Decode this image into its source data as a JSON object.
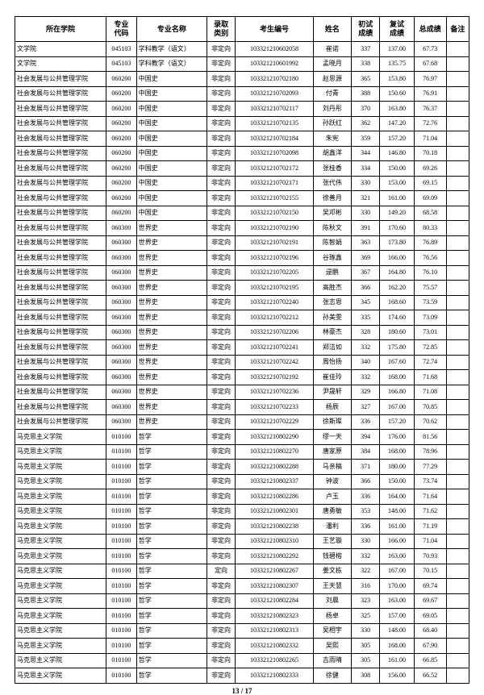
{
  "headers": [
    "所在学院",
    "专业\n代码",
    "专业名称",
    "录取\n类别",
    "考生编号",
    "姓名",
    "初试\n成绩",
    "复试\n成绩",
    "总成绩",
    "备注"
  ],
  "rows": [
    [
      "文学院",
      "045103",
      "学科教学（语文）",
      "非定向",
      "103321210602058",
      "崔诺",
      "337",
      "137.00",
      "67.73",
      ""
    ],
    [
      "文学院",
      "045103",
      "学科教学（语文）",
      "非定向",
      "103321210601992",
      "孟晓月",
      "338",
      "135.75",
      "67.68",
      ""
    ],
    [
      "社会发展与公共管理学院",
      "060200",
      "中国史",
      "非定向",
      "103321210702180",
      "赵思源",
      "365",
      "153.80",
      "76.97",
      ""
    ],
    [
      "社会发展与公共管理学院",
      "060200",
      "中国史",
      "非定向",
      "103321210702093",
      "付青",
      "388",
      "150.60",
      "76.91",
      ""
    ],
    [
      "社会发展与公共管理学院",
      "060200",
      "中国史",
      "非定向",
      "103321210702117",
      "刘丹彤",
      "370",
      "163.80",
      "76.37",
      ""
    ],
    [
      "社会发展与公共管理学院",
      "060200",
      "中国史",
      "非定向",
      "103321210702135",
      "孙跃红",
      "362",
      "147.20",
      "72.76",
      ""
    ],
    [
      "社会发展与公共管理学院",
      "060200",
      "中国史",
      "非定向",
      "103321210702184",
      "朱宪",
      "359",
      "157.20",
      "71.04",
      ""
    ],
    [
      "社会发展与公共管理学院",
      "060200",
      "中国史",
      "非定向",
      "103321210702098",
      "胡鑫洋",
      "344",
      "146.80",
      "70.18",
      ""
    ],
    [
      "社会发展与公共管理学院",
      "060200",
      "中国史",
      "非定向",
      "103321210702172",
      "张桂香",
      "334",
      "150.00",
      "69.26",
      ""
    ],
    [
      "社会发展与公共管理学院",
      "060200",
      "中国史",
      "非定向",
      "103321210702171",
      "张代伟",
      "330",
      "153.00",
      "69.15",
      ""
    ],
    [
      "社会发展与公共管理学院",
      "060200",
      "中国史",
      "非定向",
      "103321210702155",
      "徐善月",
      "321",
      "161.00",
      "69.09",
      ""
    ],
    [
      "社会发展与公共管理学院",
      "060200",
      "中国史",
      "非定向",
      "103321210702150",
      "吴邓彬",
      "330",
      "149.20",
      "68.58",
      ""
    ],
    [
      "社会发展与公共管理学院",
      "060300",
      "世界史",
      "非定向",
      "103321210702190",
      "陈秋文",
      "391",
      "170.60",
      "80.33",
      ""
    ],
    [
      "社会发展与公共管理学院",
      "060300",
      "世界史",
      "非定向",
      "103321210702191",
      "陈智娟",
      "363",
      "173.80",
      "76.89",
      ""
    ],
    [
      "社会发展与公共管理学院",
      "060300",
      "世界史",
      "非定向",
      "103321210702196",
      "谷琢鑫",
      "369",
      "166.00",
      "76.56",
      ""
    ],
    [
      "社会发展与公共管理学院",
      "060300",
      "世界史",
      "非定向",
      "103321210702205",
      "逯鹏",
      "367",
      "164.80",
      "76.10",
      ""
    ],
    [
      "社会发展与公共管理学院",
      "060300",
      "世界史",
      "非定向",
      "103321210702195",
      "高胜杰",
      "366",
      "162.20",
      "75.57",
      ""
    ],
    [
      "社会发展与公共管理学院",
      "060300",
      "世界史",
      "非定向",
      "103321210702240",
      "张志恩",
      "345",
      "168.60",
      "73.59",
      ""
    ],
    [
      "社会发展与公共管理学院",
      "060300",
      "世界史",
      "非定向",
      "103321210702212",
      "孙美雯",
      "335",
      "174.60",
      "73.09",
      ""
    ],
    [
      "社会发展与公共管理学院",
      "060300",
      "世界史",
      "非定向",
      "103321210702206",
      "林豪杰",
      "328",
      "180.60",
      "73.01",
      ""
    ],
    [
      "社会发展与公共管理学院",
      "060300",
      "世界史",
      "非定向",
      "103321210702241",
      "郑洁如",
      "332",
      "175.80",
      "72.85",
      ""
    ],
    [
      "社会发展与公共管理学院",
      "060300",
      "世界史",
      "非定向",
      "103321210702242",
      "周怡扬",
      "340",
      "167.60",
      "72.74",
      ""
    ],
    [
      "社会发展与公共管理学院",
      "060300",
      "世界史",
      "非定向",
      "103321210702192",
      "崔佳玲",
      "332",
      "168.00",
      "71.68",
      ""
    ],
    [
      "社会发展与公共管理学院",
      "060300",
      "世界史",
      "非定向",
      "103321210702236",
      "尹晟轩",
      "329",
      "166.80",
      "71.08",
      ""
    ],
    [
      "社会发展与公共管理学院",
      "060300",
      "世界史",
      "非定向",
      "103321210702233",
      "杨辰",
      "327",
      "167.00",
      "70.85",
      ""
    ],
    [
      "社会发展与公共管理学院",
      "060300",
      "世界史",
      "非定向",
      "103321210702229",
      "徐斯璨",
      "336",
      "157.20",
      "70.62",
      ""
    ],
    [
      "马克思主义学院",
      "010100",
      "哲学",
      "非定向",
      "103321210802290",
      "缪一天",
      "394",
      "176.00",
      "81.56",
      ""
    ],
    [
      "马克思主义学院",
      "010100",
      "哲学",
      "非定向",
      "103321210802270",
      "唐家原",
      "384",
      "168.00",
      "78.96",
      ""
    ],
    [
      "马克思主义学院",
      "010100",
      "哲学",
      "非定向",
      "103321210802288",
      "马亲稿",
      "371",
      "180.00",
      "77.29",
      ""
    ],
    [
      "马克思主义学院",
      "010100",
      "哲学",
      "非定向",
      "103321210802337",
      "钟波",
      "366",
      "150.00",
      "73.74",
      ""
    ],
    [
      "马克思主义学院",
      "010100",
      "哲学",
      "非定向",
      "103321210802286",
      "卢玉",
      "336",
      "164.00",
      "71.64",
      ""
    ],
    [
      "马克思主义学院",
      "010100",
      "哲学",
      "非定向",
      "103321210802301",
      "唐勇敏",
      "353",
      "148.00",
      "71.62",
      ""
    ],
    [
      "马克思主义学院",
      "010100",
      "哲学",
      "非定向",
      "103321210802238",
      "潘利",
      "336",
      "161.00",
      "71.19",
      ""
    ],
    [
      "马克思主义学院",
      "010100",
      "哲学",
      "非定向",
      "103321210802310",
      "王艺璇",
      "330",
      "166.00",
      "71.04",
      ""
    ],
    [
      "马克思主义学院",
      "010100",
      "哲学",
      "非定向",
      "103321210802292",
      "钱碧榕",
      "332",
      "163.00",
      "70.93",
      ""
    ],
    [
      "马克思主义学院",
      "010100",
      "哲学",
      "定向",
      "103321210802267",
      "姜文栋",
      "322",
      "167.00",
      "70.15",
      ""
    ],
    [
      "马克思主义学院",
      "010100",
      "哲学",
      "非定向",
      "103321210802307",
      "王天慧",
      "316",
      "170.00",
      "69.74",
      ""
    ],
    [
      "马克思主义学院",
      "010100",
      "哲学",
      "非定向",
      "103321210802284",
      "刘晨",
      "323",
      "163.00",
      "69.67",
      ""
    ],
    [
      "马克思主义学院",
      "010100",
      "哲学",
      "非定向",
      "103321210802323",
      "杨卓",
      "325",
      "157.00",
      "69.05",
      ""
    ],
    [
      "马克思主义学院",
      "010100",
      "哲学",
      "非定向",
      "103321210802313",
      "吴相宇",
      "330",
      "148.00",
      "68.40",
      ""
    ],
    [
      "马克思主义学院",
      "010100",
      "哲学",
      "非定向",
      "103321210802332",
      "吴熙",
      "305",
      "168.00",
      "67.90",
      ""
    ],
    [
      "马克思主义学院",
      "010100",
      "哲学",
      "非定向",
      "103321210802265",
      "吉雨晴",
      "305",
      "161.00",
      "66.85",
      ""
    ],
    [
      "马克思主义学院",
      "010100",
      "哲学",
      "非定向",
      "103321210802333",
      "徐健",
      "308",
      "156.00",
      "66.52",
      ""
    ]
  ],
  "pagenum": "13 / 17"
}
